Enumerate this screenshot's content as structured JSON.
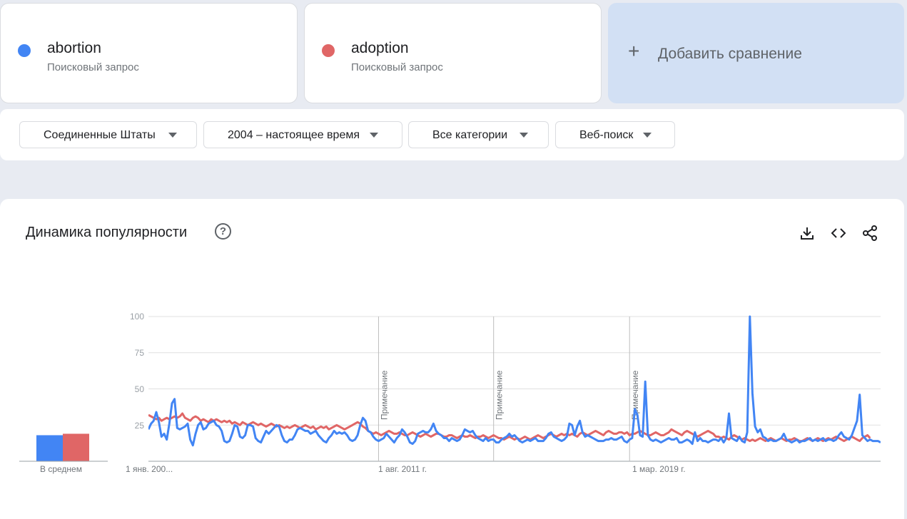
{
  "terms": [
    {
      "label": "abortion",
      "sub": "Поисковый запрос",
      "color": "#4285f4"
    },
    {
      "label": "adoption",
      "sub": "Поисковый запрос",
      "color": "#e06666"
    }
  ],
  "add_comparison": {
    "icon": "plus-icon",
    "label": "Добавить сравнение"
  },
  "filters": {
    "region": "Соединенные Штаты",
    "time": "2004 – настоящее время",
    "category": "Все категории",
    "search_type": "Веб-поиск"
  },
  "chart": {
    "title": "Динамика популярности",
    "help_icon": "help-circle-icon",
    "toolbar_icons": [
      "download-icon",
      "embed-code-icon",
      "share-icon"
    ],
    "avg_label": "В среднем",
    "note_label": "Примечание",
    "x_ticks": [
      "1 янв. 200...",
      "1 авг. 2011 г.",
      "1 мар. 2019 г."
    ],
    "y_ticks": [
      "100",
      "75",
      "50",
      "25"
    ]
  },
  "chart_data": {
    "type": "line",
    "ylim": [
      0,
      100
    ],
    "y_ticks": [
      25,
      50,
      75,
      100
    ],
    "grid": true,
    "averages": [
      {
        "name": "abortion",
        "value": 18,
        "color": "#4285f4"
      },
      {
        "name": "adoption",
        "value": 19,
        "color": "#e06666"
      }
    ],
    "notes_at_index": [
      88,
      132,
      184
    ],
    "series": [
      {
        "name": "abortion",
        "color": "#4285f4",
        "values": [
          22,
          26,
          28,
          34,
          27,
          17,
          19,
          15,
          26,
          40,
          43,
          23,
          22,
          23,
          24,
          26,
          15,
          11,
          19,
          25,
          27,
          22,
          23,
          26,
          27,
          28,
          25,
          24,
          21,
          14,
          13,
          14,
          19,
          25,
          24,
          17,
          16,
          18,
          25,
          25,
          24,
          16,
          14,
          13,
          17,
          21,
          19,
          21,
          23,
          25,
          24,
          18,
          14,
          13,
          15,
          15,
          18,
          22,
          23,
          22,
          21,
          21,
          19,
          20,
          21,
          18,
          16,
          14,
          13,
          16,
          18,
          21,
          19,
          20,
          19,
          20,
          18,
          15,
          14,
          15,
          18,
          25,
          30,
          28,
          21,
          20,
          17,
          15,
          14,
          15,
          16,
          19,
          17,
          15,
          13,
          16,
          18,
          22,
          20,
          17,
          13,
          12,
          14,
          19,
          20,
          21,
          20,
          20,
          22,
          26,
          21,
          19,
          18,
          16,
          16,
          14,
          16,
          15,
          14,
          15,
          18,
          22,
          21,
          20,
          21,
          18,
          16,
          15,
          14,
          16,
          14,
          15,
          15,
          13,
          13,
          15,
          16,
          17,
          19,
          17,
          18,
          16,
          14,
          13,
          14,
          15,
          14,
          15,
          16,
          14,
          14,
          14,
          16,
          19,
          20,
          17,
          16,
          15,
          14,
          15,
          17,
          26,
          25,
          18,
          24,
          28,
          20,
          17,
          18,
          17,
          16,
          15,
          14,
          14,
          14,
          15,
          15,
          16,
          15,
          15,
          16,
          17,
          14,
          13,
          15,
          16,
          36,
          32,
          18,
          17,
          55,
          18,
          15,
          14,
          15,
          14,
          13,
          14,
          15,
          16,
          15,
          15,
          16,
          13,
          13,
          14,
          15,
          14,
          12,
          20,
          14,
          16,
          14,
          14,
          13,
          14,
          15,
          15,
          14,
          16,
          13,
          16,
          33,
          16,
          15,
          14,
          17,
          14,
          13,
          20,
          100,
          47,
          24,
          20,
          22,
          17,
          16,
          14,
          15,
          14,
          14,
          15,
          16,
          19,
          15,
          14,
          13,
          14,
          15,
          13,
          14,
          14,
          15,
          16,
          14,
          15,
          14,
          15,
          16,
          14,
          15,
          15,
          14,
          15,
          18,
          20,
          17,
          16,
          15,
          18,
          23,
          28,
          46,
          18,
          16,
          14,
          15,
          14,
          14,
          14,
          13
        ],
        "_note": "abortion series values"
      },
      {
        "name": "adoption",
        "color": "#e06666",
        "values": [
          32,
          31,
          30,
          29,
          30,
          28,
          29,
          30,
          29,
          30,
          31,
          30,
          31,
          33,
          30,
          29,
          28,
          30,
          31,
          30,
          28,
          29,
          28,
          27,
          29,
          28,
          29,
          28,
          27,
          28,
          27,
          28,
          26,
          27,
          26,
          25,
          27,
          26,
          25,
          26,
          27,
          26,
          25,
          26,
          25,
          24,
          25,
          26,
          25,
          24,
          25,
          24,
          23,
          24,
          23,
          24,
          25,
          24,
          23,
          24,
          25,
          24,
          23,
          24,
          22,
          23,
          24,
          23,
          24,
          22,
          23,
          24,
          25,
          24,
          23,
          22,
          23,
          24,
          25,
          26,
          27,
          26,
          24,
          23,
          21,
          20,
          19,
          20,
          19,
          18,
          19,
          20,
          21,
          20,
          19,
          19,
          20,
          19,
          18,
          18,
          19,
          20,
          19,
          18,
          17,
          18,
          19,
          18,
          17,
          18,
          19,
          19,
          18,
          17,
          17,
          18,
          18,
          17,
          16,
          17,
          18,
          17,
          17,
          18,
          17,
          16,
          17,
          17,
          18,
          17,
          16,
          17,
          18,
          17,
          16,
          16,
          15,
          16,
          17,
          16,
          15,
          16,
          15,
          16,
          17,
          16,
          15,
          16,
          17,
          18,
          17,
          16,
          17,
          18,
          19,
          18,
          17,
          18,
          19,
          18,
          19,
          18,
          19,
          18,
          17,
          19,
          20,
          19,
          18,
          19,
          20,
          21,
          20,
          19,
          18,
          20,
          21,
          20,
          19,
          19,
          20,
          20,
          19,
          20,
          18,
          19,
          19,
          20,
          21,
          20,
          19,
          18,
          18,
          19,
          20,
          19,
          18,
          18,
          19,
          20,
          22,
          21,
          20,
          19,
          18,
          20,
          21,
          20,
          19,
          18,
          17,
          18,
          19,
          20,
          21,
          20,
          19,
          17,
          17,
          16,
          17,
          16,
          15,
          17,
          18,
          17,
          16,
          15,
          16,
          15,
          14,
          15,
          14,
          15,
          16,
          15,
          14,
          15,
          16,
          15,
          14,
          15,
          16,
          15,
          14,
          15,
          15,
          16,
          15,
          14,
          14,
          15,
          16,
          15,
          14,
          15,
          16,
          15,
          14,
          15,
          16,
          15,
          16,
          17,
          16,
          15,
          14,
          15,
          16,
          17,
          16,
          15,
          14,
          16,
          17,
          18,
          16
        ]
      }
    ]
  }
}
